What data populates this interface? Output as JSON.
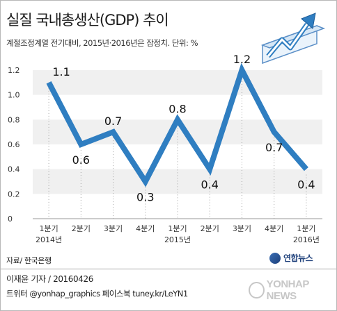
{
  "header": {
    "title": "실질 국내총생산(GDP) 추이",
    "subtitle": "계절조정계열 전기대비, 2015년·2016년은 잠정치. 단위: %"
  },
  "chart_data": {
    "type": "line",
    "categories": [
      "1분기",
      "2분기",
      "3분기",
      "4분기",
      "1분기",
      "2분기",
      "3분기",
      "4분기",
      "1분기"
    ],
    "year_labels": [
      "2014년",
      "",
      "",
      "",
      "2015년",
      "",
      "",
      "",
      "2016년"
    ],
    "series": [
      {
        "values": [
          1.1,
          0.6,
          0.7,
          0.3,
          0.8,
          0.4,
          1.2,
          0.7,
          0.4
        ]
      }
    ],
    "data_labels": [
      "1.1",
      "0.6",
      "0.7",
      "0.3",
      "0.8",
      "0.4",
      "1.2",
      "0.7",
      "0.4"
    ],
    "ylim": [
      0,
      1.2
    ],
    "yticks": [
      "0",
      "0.2",
      "0.4",
      "0.6",
      "0.8",
      "1.0",
      "1.2"
    ],
    "grid": "horizontal bands",
    "colors": {
      "line": "#2f7ec1",
      "band": "#f0f0f0",
      "tick_text": "#333333"
    }
  },
  "footer": {
    "source": "자료/ 한국은행",
    "byline": "이재윤 기자 / 20160426",
    "social": "트위터 @yonhap_graphics  페이스북 tuney.kr/LeYN1",
    "agency_logo": "연합뉴스",
    "watermark": "YONHAP NEWS"
  }
}
